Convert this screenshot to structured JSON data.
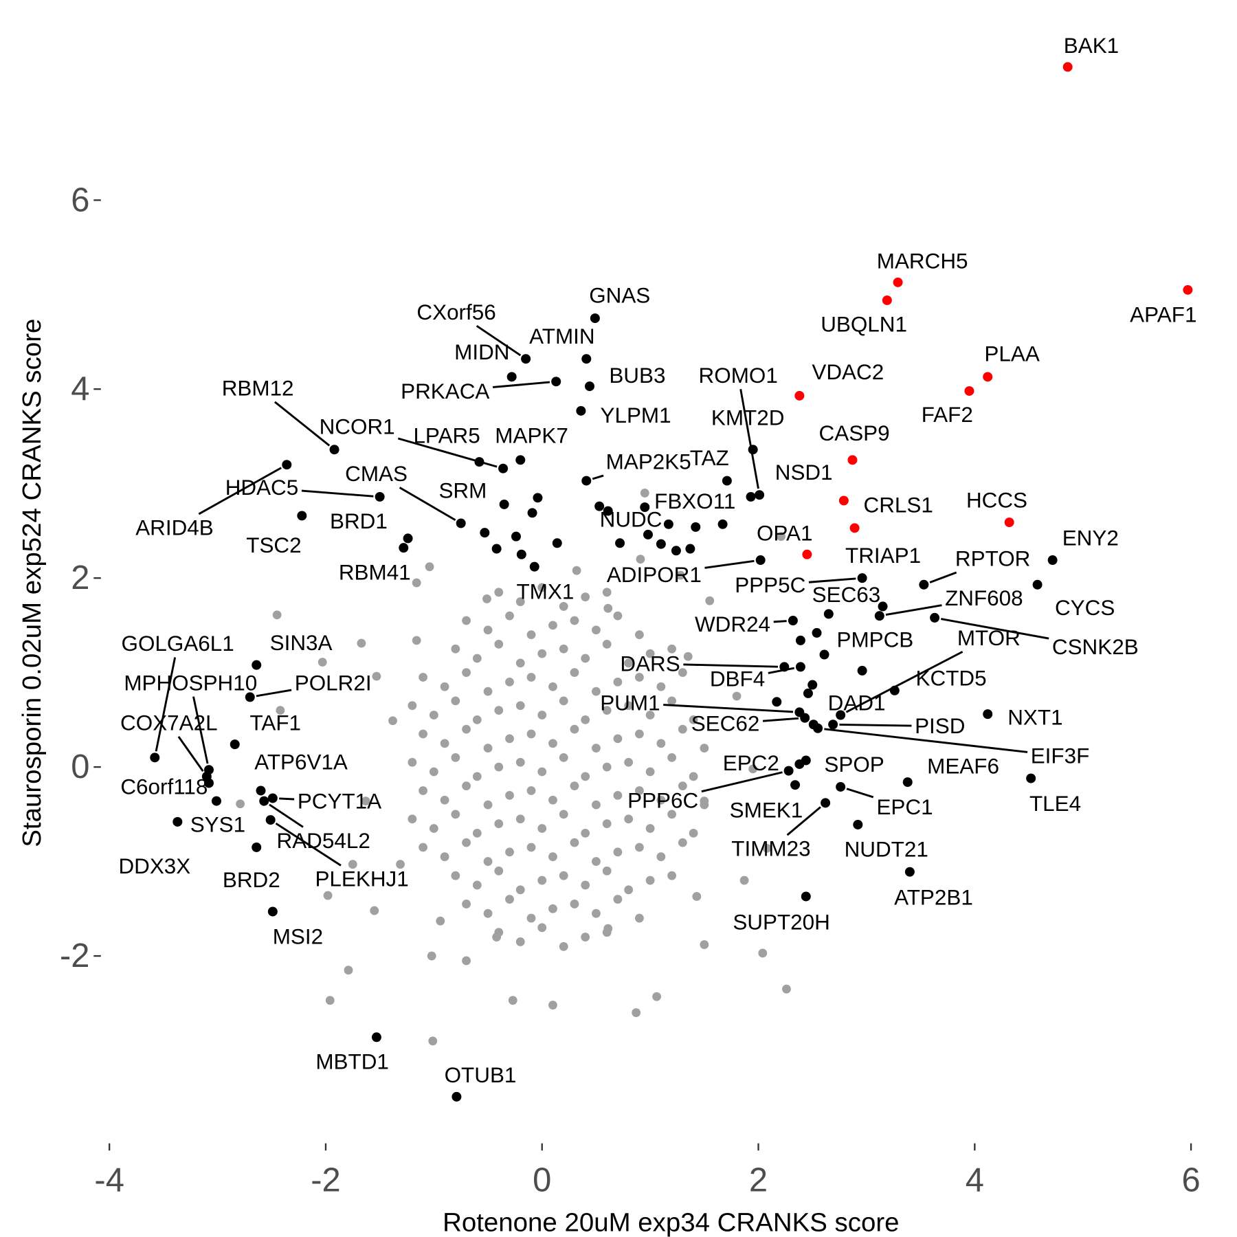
{
  "chart_data": {
    "type": "scatter",
    "x_label": "Rotenone 20uM exp34 CRANKS score",
    "y_label": "Staurosporin 0.02uM exp524 CRANKS score",
    "xlim": [
      -4.2,
      6.2
    ],
    "xticks": [
      -4,
      -2,
      0,
      2,
      4,
      6
    ],
    "ylim": [
      -3.8,
      7.6
    ],
    "yticks": [
      -2,
      0,
      2,
      4,
      6
    ],
    "grid": false,
    "series": [
      {
        "color": "#a0a0a0",
        "x": [
          -0.4,
          -0.2,
          0,
          0.2,
          0.4,
          0.6,
          -0.7,
          -0.5,
          -0.3,
          -0.1,
          0.1,
          0.3,
          0.5,
          0.7,
          0.9,
          -0.8,
          -0.6,
          -0.4,
          -0.2,
          0,
          0.2,
          0.4,
          0.6,
          0.8,
          1,
          1.2,
          -1.1,
          -0.9,
          -0.7,
          -0.5,
          -0.3,
          -0.1,
          0.1,
          0.3,
          0.5,
          0.7,
          0.9,
          1.1,
          1.3,
          -1.2,
          -1,
          -0.8,
          -0.6,
          -0.4,
          -0.2,
          0,
          0.2,
          0.4,
          0.6,
          0.8,
          1,
          1.2,
          1.4,
          -1.1,
          -0.9,
          -0.7,
          -0.5,
          -0.3,
          -0.1,
          0.1,
          0.3,
          0.5,
          0.7,
          0.9,
          1.1,
          1.3,
          1.5,
          -1.2,
          -1,
          -0.8,
          -0.6,
          -0.4,
          -0.2,
          0,
          0.2,
          0.4,
          0.6,
          0.8,
          1,
          1.2,
          1.4,
          -1.1,
          -0.9,
          -0.7,
          -0.5,
          -0.3,
          -0.1,
          0.1,
          0.3,
          0.5,
          0.7,
          0.9,
          1.1,
          1.3,
          1.5,
          -1.2,
          -1,
          -0.8,
          -0.6,
          -0.4,
          -0.2,
          0,
          0.2,
          0.4,
          0.6,
          0.8,
          1,
          1.2,
          1.4,
          -1.1,
          -0.9,
          -0.7,
          -0.5,
          -0.3,
          -0.1,
          0.1,
          0.3,
          0.5,
          0.7,
          0.9,
          1.1,
          1.3,
          -0.8,
          -0.6,
          -0.4,
          -0.2,
          0,
          0.2,
          0.4,
          0.6,
          0.8,
          1,
          1.2,
          -0.7,
          -0.5,
          -0.3,
          -0.1,
          0.1,
          0.3,
          0.5,
          0.7,
          0.9,
          -0.4,
          -0.2,
          0,
          0.2,
          0.4,
          0.6,
          0.95,
          -1.04,
          -2.45,
          -1.67,
          -2.03,
          -2.42,
          -2.79,
          -1.98,
          -1.96,
          -1.55,
          -1.79,
          -1.01,
          -1.02,
          -0.7,
          -0.27,
          0.1,
          0.87,
          1.06,
          1.5,
          2.04,
          2.26,
          2.08,
          2.21,
          1.55,
          1.28,
          0.91,
          0.32,
          -0.51,
          -1.16,
          -1.53,
          -1.63,
          -1.75,
          1.8,
          1.95,
          1.87,
          1.43,
          0.61,
          -0.42,
          -0.94,
          -1.31,
          -1.38,
          -1.16,
          0.61,
          1.35,
          1.5
        ],
        "values": [
          1.85,
          1.75,
          1.9,
          1.7,
          1.8,
          1.85,
          1.55,
          1.45,
          1.6,
          1.4,
          1.5,
          1.55,
          1.45,
          1.6,
          1.4,
          1.25,
          1.15,
          1.3,
          1.1,
          1.2,
          1.25,
          1.15,
          1.3,
          1.1,
          1.2,
          1.25,
          0.95,
          0.85,
          1,
          0.8,
          0.9,
          0.95,
          0.85,
          1,
          0.8,
          0.9,
          0.95,
          0.85,
          1,
          0.65,
          0.55,
          0.7,
          0.5,
          0.6,
          0.65,
          0.55,
          0.7,
          0.5,
          0.6,
          0.65,
          0.55,
          0.7,
          0.5,
          0.35,
          0.25,
          0.4,
          0.2,
          0.3,
          0.35,
          0.25,
          0.4,
          0.2,
          0.3,
          0.35,
          0.25,
          0.4,
          0.2,
          0.05,
          -0.05,
          0.1,
          -0.1,
          0,
          0.05,
          -0.05,
          0.1,
          -0.1,
          0,
          0.05,
          -0.05,
          0.1,
          -0.1,
          -0.25,
          -0.35,
          -0.2,
          -0.4,
          -0.3,
          -0.25,
          -0.35,
          -0.2,
          -0.4,
          -0.3,
          -0.25,
          -0.35,
          -0.2,
          -0.4,
          -0.55,
          -0.65,
          -0.5,
          -0.7,
          -0.6,
          -0.55,
          -0.65,
          -0.5,
          -0.7,
          -0.6,
          -0.55,
          -0.65,
          -0.5,
          -0.7,
          -0.85,
          -0.95,
          -0.8,
          -1,
          -0.9,
          -0.85,
          -0.95,
          -0.8,
          -1,
          -0.9,
          -0.85,
          -0.95,
          -0.8,
          -1.15,
          -1.25,
          -1.1,
          -1.3,
          -1.2,
          -1.15,
          -1.25,
          -1.1,
          -1.3,
          -1.2,
          -1.15,
          -1.45,
          -1.55,
          -1.4,
          -1.6,
          -1.5,
          -1.45,
          -1.55,
          -1.4,
          -1.6,
          -1.75,
          -1.85,
          -1.7,
          -1.9,
          -1.8,
          -1.75,
          2.9,
          2.12,
          1.61,
          1.31,
          1.11,
          0.6,
          -0.39,
          -1.36,
          -2.47,
          -1.52,
          -2.15,
          -2.9,
          -2,
          -2.05,
          -2.47,
          -2.52,
          -2.6,
          -2.43,
          -1.88,
          -1.97,
          -2.35,
          -0.86,
          2.44,
          1.76,
          2.03,
          2.2,
          2.08,
          1.78,
          1.95,
          0.96,
          -0.36,
          -1.03,
          0.75,
          -0.02,
          -1.2,
          -1.37,
          -1.71,
          -1.8,
          -1.63,
          -1.03,
          0.49,
          1.34,
          1.68,
          1.17,
          -0.36
        ]
      },
      {
        "color": "#000000",
        "labels": [
          "GNAS",
          "CXorf56",
          "ATMIN",
          "MIDN",
          "PRKACA",
          "BUB3",
          "YLPM1",
          "MAPK7",
          "LPAR5",
          "NCOR1",
          "RBM12",
          "ARID4B",
          "HDAC5",
          "TSC2",
          "BRD1",
          "RBM41",
          "CMAS",
          "SRM",
          "MAP2K5",
          "TAZ",
          "ROMO1",
          "KMT2D",
          "NSD1",
          "FBXO11",
          "NUDC",
          "TMX1",
          "ADIPOR1",
          "PPP5C",
          "SEC63",
          "ZNF608",
          "RPTOR",
          "ENY2",
          "CYCS",
          "CSNK2B",
          "MTOR",
          "KCTD5",
          "DAD1",
          "WDR24",
          "PMPCB",
          "DARS",
          "DBF4",
          "PUM1",
          "SEC62",
          "PISD",
          "EIF3F",
          "NXT1",
          "EPC2",
          "SPOP",
          "PPP6C",
          "MEAF6",
          "TLE4",
          "SMEK1",
          "EPC1",
          "TIMM23",
          "NUDT21",
          "ATP2B1",
          "SUPT20H",
          "GOLGA6L1",
          "MPHOSPH10",
          "COX7A2L",
          "C6orf118",
          "SIN3A",
          "POLR2I",
          "TAF1",
          "ATP6V1A",
          "PCYT1A",
          "SYS1",
          "DDX3X",
          "RAD54L2",
          "PLEKHJ1",
          "BRD2",
          "MSI2",
          "MBTD1",
          "OTUB1",
          null,
          null,
          null,
          null,
          null,
          null,
          null,
          null,
          null,
          null,
          null,
          null,
          null,
          null,
          null,
          null,
          null,
          null,
          null,
          null,
          null,
          null,
          null
        ],
        "x": [
          0.49,
          -0.15,
          0.41,
          -0.28,
          0.13,
          0.44,
          0.36,
          -0.2,
          -0.58,
          -0.36,
          -1.92,
          -2.36,
          -1.5,
          -2.22,
          -1.24,
          -1.28,
          -0.75,
          -0.35,
          0.41,
          1.71,
          2.01,
          1.95,
          1.93,
          1.17,
          0.61,
          -0.07,
          2.02,
          2.96,
          3.15,
          3.12,
          3.53,
          4.72,
          4.58,
          3.63,
          2.76,
          3.26,
          2.46,
          2.32,
          2.61,
          2.24,
          2.39,
          2.38,
          2.43,
          2.69,
          2.55,
          4.12,
          2.38,
          2.44,
          2.28,
          3.38,
          4.52,
          2.34,
          2.76,
          2.62,
          2.92,
          3.4,
          2.44,
          -3.58,
          -3.08,
          -3.1,
          -3.08,
          -2.64,
          -2.7,
          -2.84,
          -2.6,
          -2.49,
          -3.01,
          -3.37,
          -2.57,
          -2.51,
          -2.64,
          -2.49,
          -1.53,
          -0.79,
          -0.09,
          -0.53,
          -0.24,
          -0.19,
          -0.42,
          0.14,
          0.53,
          0.72,
          0.98,
          0.95,
          1.1,
          1.24,
          1.37,
          1.42,
          1.67,
          2.96,
          2.5,
          2.17,
          2.54,
          2.39,
          -0.04,
          2.65,
          2.51
        ],
        "values": [
          4.75,
          4.32,
          4.32,
          4.13,
          4.08,
          4.03,
          3.77,
          3.25,
          3.23,
          3.16,
          3.36,
          3.2,
          2.86,
          2.66,
          2.42,
          2.32,
          2.58,
          2.78,
          3.03,
          3.03,
          2.88,
          3.36,
          2.86,
          2.57,
          2.71,
          2.12,
          2.19,
          2,
          1.7,
          1.6,
          1.93,
          2.19,
          1.93,
          1.58,
          0.55,
          0.81,
          0.78,
          1.55,
          1.19,
          1.06,
          1.06,
          0.58,
          0.52,
          0.45,
          0.41,
          0.56,
          0.03,
          0.07,
          -0.04,
          -0.16,
          -0.12,
          -0.19,
          -0.21,
          -0.38,
          -0.61,
          -1.11,
          -1.37,
          0.1,
          -0.03,
          -0.1,
          -0.17,
          1.08,
          0.74,
          0.24,
          -0.25,
          -0.33,
          -0.36,
          -0.58,
          -0.36,
          -0.56,
          -0.85,
          -1.53,
          -2.86,
          -3.49,
          2.69,
          2.48,
          2.44,
          2.25,
          2.31,
          2.37,
          2.76,
          2.37,
          2.46,
          2.75,
          2.36,
          2.29,
          2.31,
          2.54,
          2.57,
          1.02,
          0.87,
          0.69,
          1.42,
          1.34,
          2.85,
          1.62,
          0.45
        ]
      },
      {
        "color": "#ff0000",
        "labels": [
          "BAK1",
          "MARCH5",
          "UBQLN1",
          "APAF1",
          "PLAA",
          "FAF2",
          "VDAC2",
          "CASP9",
          "CRLS1",
          "HCCS",
          "TRIAP1",
          "OPA1"
        ],
        "x": [
          4.86,
          3.29,
          3.19,
          5.97,
          4.12,
          3.95,
          2.38,
          2.87,
          2.79,
          4.32,
          2.89,
          2.45
        ],
        "values": [
          7.41,
          5.13,
          4.94,
          5.05,
          4.13,
          3.98,
          3.93,
          3.25,
          2.82,
          2.59,
          2.53,
          2.25
        ]
      }
    ]
  }
}
